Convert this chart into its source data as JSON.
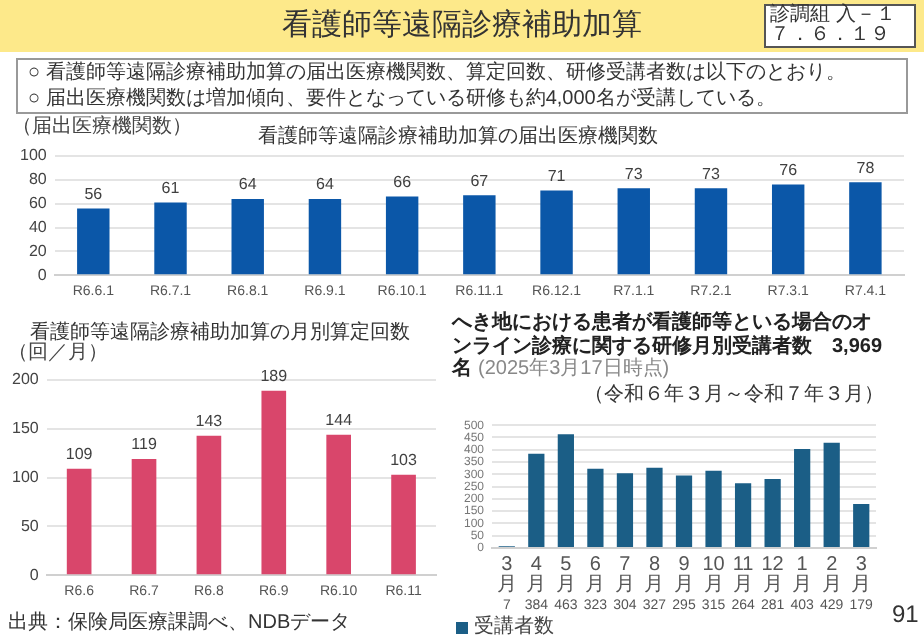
{
  "chart_data": [
    {
      "type": "bar",
      "title": "看護師等遠隔診療補助加算の届出医療機関数",
      "ylabel": "（届出医療機関数）",
      "categories": [
        "R6.6.1",
        "R6.7.1",
        "R6.8.1",
        "R6.9.1",
        "R6.10.1",
        "R6.11.1",
        "R6.12.1",
        "R7.1.1",
        "R7.2.1",
        "R7.3.1",
        "R7.4.1"
      ],
      "values": [
        56,
        61,
        64,
        64,
        66,
        67,
        71,
        73,
        73,
        76,
        78
      ],
      "color": "#0b57a8",
      "ylim": [
        0,
        100
      ],
      "yticks": [
        0,
        20,
        40,
        60,
        80,
        100
      ],
      "grid": "y",
      "data_labels": true,
      "annotations": [
        "看護師等遠隔診療補助加算",
        "診調組 入－１",
        "７．６．１９",
        "○ 看護師等遠隔診療補助加算の届出医療機関数、算定回数、研修受講者数は以下のとおり。",
        "○ 届出医療機関数は増加傾向、要件となっている研修も約4,000名が受講している。"
      ]
    },
    {
      "type": "bar",
      "title": "看護師等遠隔診療補助加算の月別算定回数",
      "ylabel": "（回／月）",
      "categories": [
        "R6.6",
        "R6.7",
        "R6.8",
        "R6.9",
        "R6.10",
        "R6.11"
      ],
      "values": [
        109,
        119,
        143,
        189,
        144,
        103
      ],
      "color": "#d9466b",
      "ylim": [
        0,
        200
      ],
      "yticks": [
        0,
        50,
        100,
        150,
        200
      ],
      "grid": "y",
      "data_labels": true,
      "annotations": [
        "出典：保険局医療課調べ、NDBデータ"
      ]
    },
    {
      "type": "bar",
      "title": "へき地における患者が看護師等といる場合のオンライン診療に関する研修月別受講者数　3,969名",
      "subtitle": "（令和６年３月～令和７年３月）",
      "categories": [
        "3月",
        "4月",
        "5月",
        "6月",
        "7月",
        "8月",
        "9月",
        "10月",
        "11月",
        "12月",
        "1月",
        "2月",
        "3月"
      ],
      "series": [
        {
          "name": "受講者数",
          "color": "#1b5e86",
          "values": [
            7,
            384,
            463,
            323,
            304,
            327,
            295,
            315,
            264,
            281,
            403,
            429,
            179
          ]
        }
      ],
      "ylim": [
        0,
        500
      ],
      "yticks": [
        0,
        50,
        100,
        150,
        200,
        250,
        300,
        350,
        400,
        450,
        500
      ],
      "grid": "y",
      "legend": "bottom left",
      "data_labels": true,
      "annotations": [
        "(2025年3月17日時点)",
        "91"
      ]
    }
  ]
}
